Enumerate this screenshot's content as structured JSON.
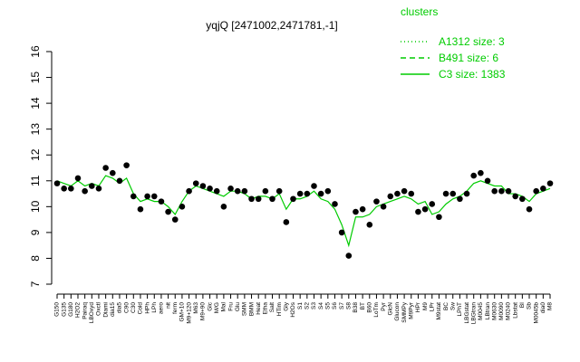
{
  "chart_data": {
    "type": "line",
    "title": "yqjQ [2471002,2471781,-1]",
    "legend_title": "clusters",
    "legend_color": "#00cc00",
    "categories": [
      "G150",
      "G135",
      "G180",
      "H2O2",
      "Pairaq",
      "LBOxyd",
      "Oxctl",
      "Diami",
      "dia15",
      "dia5",
      "C90",
      "C30",
      "Cold",
      "HPh",
      "LPh",
      "aero",
      "nit",
      "ferm",
      "GM+10",
      "M9+120",
      "M63",
      "M9+90",
      "Glc",
      "M/G",
      "Mal",
      "Fru",
      "Glu",
      "SMM",
      "BMM",
      "Heat",
      "Etha",
      "Salt",
      "HTim",
      "Gly",
      "H2Os",
      "S1",
      "S2",
      "S3",
      "S4",
      "S5",
      "S6",
      "S7",
      "S8",
      "B38",
      "BT",
      "B60",
      "LoTm",
      "Pyr",
      "GlcN",
      "Glucon",
      "SMMPy",
      "M9Pyr",
      "HPr",
      "M9",
      "LPr",
      "M9stat",
      "BC",
      "Sw",
      "LPhT",
      "LBGstat",
      "LBGtran",
      "M0045",
      "LBtran",
      "M0630",
      "M0090",
      "M0240",
      "Lbstat",
      "BI",
      "Sb",
      "M0045b",
      "dia0",
      "M8"
    ],
    "series": [
      {
        "name": "A1312 size: 3",
        "color": "#00cc00",
        "dash": "1,3",
        "values": [
          null,
          null,
          null,
          null,
          null,
          null,
          null,
          null,
          null,
          null,
          null,
          null,
          null,
          null,
          null,
          null,
          null,
          null,
          null,
          null,
          null,
          null,
          null,
          null,
          null,
          null,
          null,
          null,
          null,
          null,
          null,
          null,
          null,
          null,
          null,
          null,
          null,
          null,
          null,
          null,
          null,
          null,
          null,
          null,
          null,
          null,
          null,
          null,
          null,
          null,
          null,
          null,
          null,
          null,
          null,
          null,
          null,
          null,
          null,
          null,
          null,
          null,
          null,
          null,
          null,
          null,
          null,
          null,
          null,
          null,
          null,
          null
        ]
      },
      {
        "name": "B491 size: 6",
        "color": "#00cc00",
        "dash": "6,4",
        "values": [
          null,
          null,
          null,
          null,
          null,
          null,
          null,
          null,
          null,
          null,
          null,
          null,
          null,
          null,
          null,
          null,
          null,
          null,
          null,
          null,
          null,
          null,
          null,
          null,
          null,
          null,
          null,
          null,
          null,
          null,
          null,
          null,
          null,
          null,
          null,
          null,
          null,
          null,
          null,
          null,
          null,
          null,
          null,
          null,
          null,
          null,
          null,
          null,
          null,
          null,
          null,
          null,
          null,
          null,
          null,
          null,
          null,
          null,
          null,
          null,
          null,
          null,
          null,
          null,
          null,
          null,
          null,
          null,
          null,
          null,
          null,
          null
        ]
      },
      {
        "name": "C3 size: 1383",
        "color": "#00cc00",
        "dash": "none",
        "values": [
          11.0,
          10.9,
          10.8,
          11.0,
          10.8,
          10.9,
          10.8,
          11.2,
          11.1,
          10.9,
          11.1,
          10.5,
          10.2,
          10.3,
          10.2,
          10.2,
          10.0,
          9.7,
          10.2,
          10.6,
          10.8,
          10.7,
          10.6,
          10.5,
          10.4,
          10.6,
          10.6,
          10.5,
          10.3,
          10.4,
          10.4,
          10.3,
          10.5,
          9.9,
          10.3,
          10.3,
          10.4,
          10.6,
          10.3,
          10.2,
          9.9,
          9.3,
          8.5,
          9.6,
          9.6,
          9.7,
          10.0,
          10.1,
          10.2,
          10.3,
          10.4,
          10.3,
          10.1,
          10.2,
          9.7,
          9.8,
          10.1,
          10.3,
          10.4,
          10.6,
          10.9,
          11.0,
          10.9,
          10.8,
          10.8,
          10.5,
          10.5,
          10.4,
          10.2,
          10.5,
          10.6,
          10.7
        ]
      }
    ],
    "points": {
      "color": "#000000",
      "values": [
        10.9,
        10.7,
        10.7,
        11.1,
        10.6,
        10.8,
        10.7,
        11.5,
        11.3,
        11.0,
        11.6,
        10.4,
        9.9,
        10.4,
        10.4,
        10.2,
        9.8,
        9.5,
        10.0,
        10.6,
        10.9,
        10.8,
        10.7,
        10.6,
        10.0,
        10.7,
        10.6,
        10.6,
        10.3,
        10.3,
        10.6,
        10.3,
        10.6,
        9.4,
        10.3,
        10.5,
        10.5,
        10.8,
        10.5,
        10.6,
        10.1,
        9.0,
        8.1,
        9.8,
        9.9,
        9.3,
        10.2,
        10.0,
        10.4,
        10.5,
        10.6,
        10.5,
        9.8,
        9.9,
        10.1,
        9.6,
        10.5,
        10.5,
        10.3,
        10.5,
        11.2,
        11.3,
        11.0,
        10.6,
        10.6,
        10.6,
        10.4,
        10.3,
        9.9,
        10.6,
        10.7,
        10.9
      ]
    },
    "ylim": [
      7,
      16
    ],
    "yticks": [
      7,
      8,
      9,
      10,
      11,
      12,
      13,
      14,
      15,
      16
    ]
  }
}
